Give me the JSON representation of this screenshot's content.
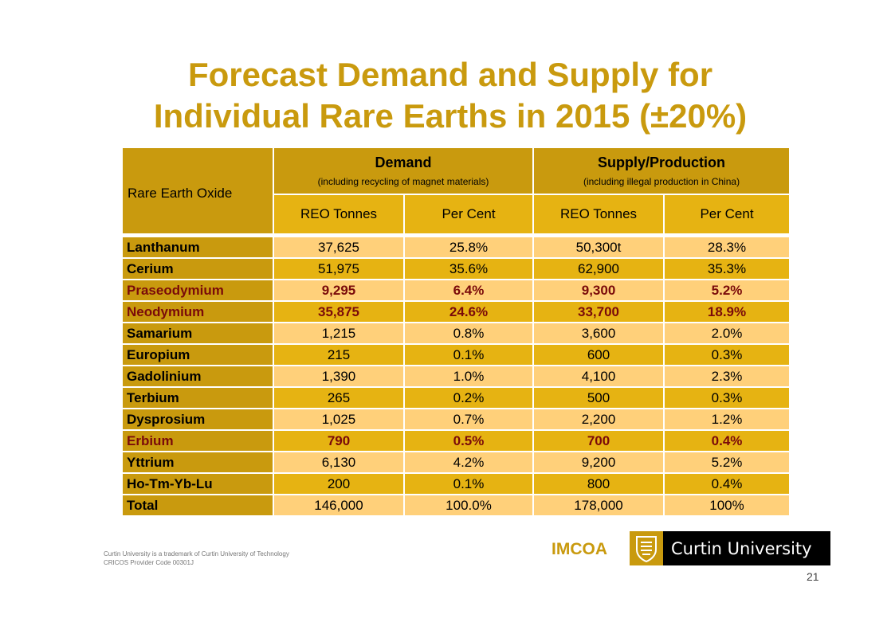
{
  "title": {
    "line1": "Forecast Demand and Supply for",
    "line2": "Individual Rare Earths in 2015 (±20%)"
  },
  "table": {
    "row_header": "Rare Earth Oxide",
    "demand": {
      "title": "Demand",
      "subtitle": "(including recycling of magnet materials)"
    },
    "supply": {
      "title": "Supply/Production",
      "subtitle": "(including illegal production in China)"
    },
    "subheaders": [
      "REO Tonnes",
      "Per Cent",
      "REO Tonnes",
      "Per Cent"
    ],
    "rows": [
      {
        "name": "Lanthanum",
        "d_t": "37,625",
        "d_p": "25.8%",
        "s_t": "50,300t",
        "s_p": "28.3%",
        "highlight": false
      },
      {
        "name": "Cerium",
        "d_t": "51,975",
        "d_p": "35.6%",
        "s_t": "62,900",
        "s_p": "35.3%",
        "highlight": false
      },
      {
        "name": "Praseodymium",
        "d_t": "9,295",
        "d_p": "6.4%",
        "s_t": "9,300",
        "s_p": "5.2%",
        "highlight": true
      },
      {
        "name": "Neodymium",
        "d_t": "35,875",
        "d_p": "24.6%",
        "s_t": "33,700",
        "s_p": "18.9%",
        "highlight": true
      },
      {
        "name": "Samarium",
        "d_t": "1,215",
        "d_p": "0.8%",
        "s_t": "3,600",
        "s_p": "2.0%",
        "highlight": false
      },
      {
        "name": "Europium",
        "d_t": "215",
        "d_p": "0.1%",
        "s_t": "600",
        "s_p": "0.3%",
        "highlight": false
      },
      {
        "name": "Gadolinium",
        "d_t": "1,390",
        "d_p": "1.0%",
        "s_t": "4,100",
        "s_p": "2.3%",
        "highlight": false
      },
      {
        "name": "Terbium",
        "d_t": "265",
        "d_p": "0.2%",
        "s_t": "500",
        "s_p": "0.3%",
        "highlight": false
      },
      {
        "name": "Dysprosium",
        "d_t": "1,025",
        "d_p": "0.7%",
        "s_t": "2,200",
        "s_p": "1.2%",
        "highlight": false
      },
      {
        "name": "Erbium",
        "d_t": "790",
        "d_p": "0.5%",
        "s_t": "700",
        "s_p": "0.4%",
        "highlight": true
      },
      {
        "name": "Yttrium",
        "d_t": "6,130",
        "d_p": "4.2%",
        "s_t": "9,200",
        "s_p": "5.2%",
        "highlight": false
      },
      {
        "name": "Ho-Tm-Yb-Lu",
        "d_t": "200",
        "d_p": "0.1%",
        "s_t": "800",
        "s_p": "0.4%",
        "highlight": false
      },
      {
        "name": "Total",
        "d_t": "146,000",
        "d_p": "100.0%",
        "s_t": "178,000",
        "s_p": "100%",
        "highlight": false
      }
    ]
  },
  "footer": {
    "note_line1": "Curtin University is a trademark of Curtin University of Technology",
    "note_line2": "CRICOS Provider Code 00301J",
    "imcoa": "IMCOA",
    "university": "Curtin University",
    "page_number": "21",
    "crest_icon": "curtin-crest-icon"
  },
  "colors": {
    "gold_dark": "#c99a0e",
    "gold_bright": "#e6b312",
    "gold_light": "#ffd07a",
    "highlight_text": "#7a0a0a"
  }
}
